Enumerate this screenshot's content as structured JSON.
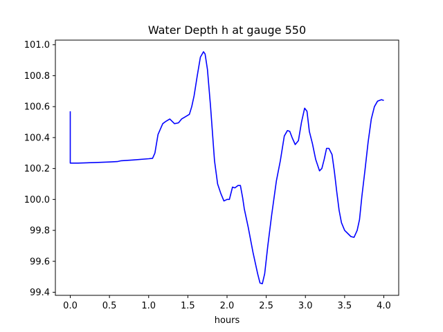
{
  "chart_data": {
    "type": "line",
    "title": "Water Depth h at gauge 550",
    "xlabel": "hours",
    "ylabel": "",
    "xlim": [
      -0.19,
      4.19
    ],
    "ylim": [
      99.38,
      101.03
    ],
    "grid": false,
    "xticks": [
      0.0,
      0.5,
      1.0,
      1.5,
      2.0,
      2.5,
      3.0,
      3.5,
      4.0
    ],
    "xtick_labels": [
      "0.0",
      "0.5",
      "1.0",
      "1.5",
      "2.0",
      "2.5",
      "3.0",
      "3.5",
      "4.0"
    ],
    "yticks": [
      99.4,
      99.6,
      99.8,
      100.0,
      100.2,
      100.4,
      100.6,
      100.8,
      101.0
    ],
    "ytick_labels": [
      "99.4",
      "99.6",
      "99.8",
      "100.0",
      "100.2",
      "100.4",
      "100.6",
      "100.8",
      "101.0"
    ],
    "series": [
      {
        "color": "#0000ff",
        "x": [
          0.0,
          0.0,
          0.1,
          0.3,
          0.5,
          0.6,
          0.65,
          0.8,
          1.0,
          1.05,
          1.08,
          1.12,
          1.18,
          1.22,
          1.27,
          1.33,
          1.38,
          1.42,
          1.47,
          1.52,
          1.55,
          1.58,
          1.62,
          1.66,
          1.7,
          1.72,
          1.75,
          1.79,
          1.84,
          1.88,
          1.92,
          1.96,
          2.0,
          2.03,
          2.07,
          2.1,
          2.14,
          2.17,
          2.2,
          2.22,
          2.27,
          2.33,
          2.39,
          2.42,
          2.45,
          2.48,
          2.52,
          2.57,
          2.63,
          2.68,
          2.73,
          2.77,
          2.8,
          2.83,
          2.87,
          2.91,
          2.95,
          2.99,
          3.02,
          3.05,
          3.09,
          3.13,
          3.18,
          3.21,
          3.24,
          3.27,
          3.3,
          3.34,
          3.37,
          3.4,
          3.43,
          3.46,
          3.5,
          3.54,
          3.58,
          3.62,
          3.66,
          3.69,
          3.72,
          3.76,
          3.8,
          3.84,
          3.88,
          3.92,
          3.97,
          4.0
        ],
        "y": [
          100.57,
          100.235,
          100.235,
          100.238,
          100.242,
          100.245,
          100.25,
          100.255,
          100.263,
          100.266,
          100.3,
          100.42,
          100.49,
          100.505,
          100.52,
          100.49,
          100.495,
          100.52,
          100.535,
          100.55,
          100.6,
          100.67,
          100.8,
          100.92,
          100.955,
          100.94,
          100.84,
          100.6,
          100.25,
          100.1,
          100.04,
          99.99,
          100.0,
          100.0,
          100.08,
          100.075,
          100.09,
          100.09,
          100.01,
          99.94,
          99.82,
          99.66,
          99.52,
          99.46,
          99.455,
          99.52,
          99.7,
          99.9,
          100.12,
          100.25,
          100.41,
          100.445,
          100.44,
          100.4,
          100.355,
          100.38,
          100.5,
          100.59,
          100.57,
          100.44,
          100.36,
          100.26,
          100.185,
          100.2,
          100.26,
          100.33,
          100.33,
          100.29,
          100.18,
          100.05,
          99.93,
          99.85,
          99.8,
          99.78,
          99.76,
          99.755,
          99.8,
          99.87,
          100.02,
          100.19,
          100.37,
          100.52,
          100.6,
          100.635,
          100.645,
          100.64
        ]
      }
    ]
  }
}
